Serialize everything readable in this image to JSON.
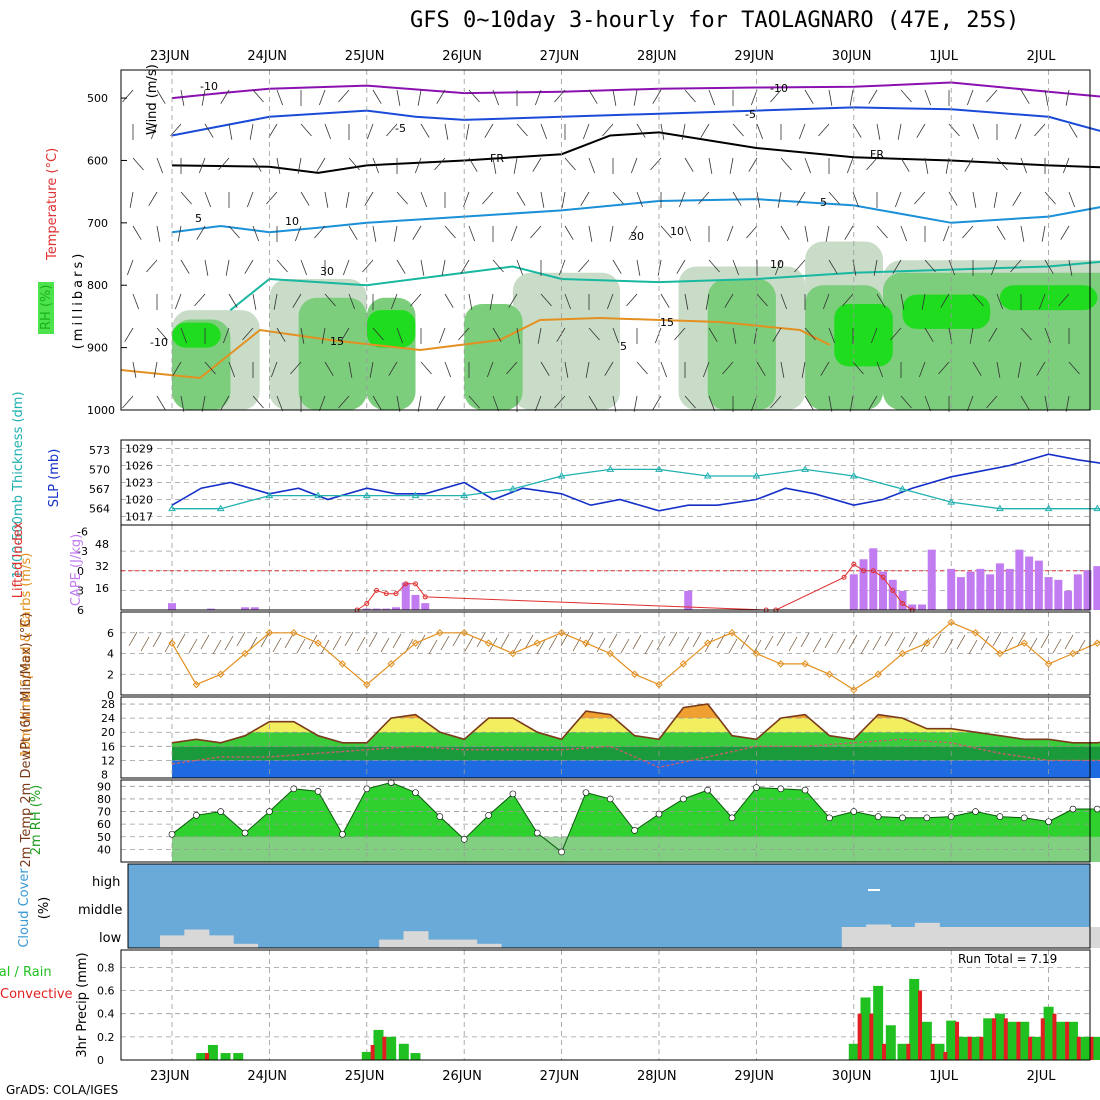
{
  "title": "GFS 0~10day 3-hourly for TAOLAGNARO (47E, 25S)",
  "credit": "GrADS: COLA/IGES",
  "run_total_label": "Run Total = 7.19",
  "colors": {
    "rh_green": "#1fdc1f",
    "rh_mid": "#7ccd7c",
    "rh_light": "#c8dcc8",
    "slp_line": "#1530c8",
    "thickness_line": "#20b0b0",
    "cape_bar": "#c07cf0",
    "lifted_line": "#e03030",
    "wind_line": "#e39020",
    "temp_line": "#7a3b1b",
    "cloud_bg": "#6aaad8",
    "cloud_low": "#d8d8d8",
    "precip_total": "#20c020",
    "precip_conv": "#e02020"
  },
  "chart_data": [
    {
      "type": "line",
      "panel": "upper-air",
      "yaxis_title": "(millibars)",
      "legend_labels": [
        "Wind (m/s)",
        "Temperature (°C)",
        "RH (%)"
      ],
      "y_ticks": [
        "500",
        "600",
        "700",
        "800",
        "900",
        "1000"
      ],
      "ylim": [
        1000,
        455
      ],
      "contour_labels": [
        "-10",
        "-10",
        "-5",
        "-5",
        "FR",
        "FR",
        "5",
        "5",
        "10",
        "-10",
        "15",
        "15",
        "5",
        "30",
        "30",
        "10",
        "10"
      ],
      "series": [
        {
          "name": "-10",
          "x_day": [
            0,
            0.5,
            1,
            2,
            3,
            4,
            5,
            6,
            7,
            8,
            9,
            9.7
          ],
          "values": [
            500,
            492,
            485,
            480,
            492,
            490,
            485,
            483,
            482,
            475,
            490,
            500
          ]
        },
        {
          "name": "-5",
          "x_day": [
            0,
            0.5,
            1,
            2,
            2.5,
            3,
            4,
            5,
            6,
            7,
            8,
            9,
            9.7
          ],
          "values": [
            560,
            545,
            530,
            520,
            530,
            535,
            530,
            525,
            520,
            515,
            518,
            530,
            560
          ]
        },
        {
          "name": "FR",
          "x_day": [
            0,
            1,
            1.5,
            2,
            3,
            4,
            4.5,
            5,
            6,
            7,
            8,
            9,
            9.7
          ],
          "values": [
            608,
            610,
            620,
            608,
            600,
            590,
            560,
            555,
            580,
            595,
            600,
            608,
            612
          ]
        },
        {
          "name": "5",
          "x_day": [
            0,
            0.5,
            1,
            1.5,
            2,
            3,
            4,
            5,
            6,
            7,
            8,
            9,
            9.7
          ],
          "values": [
            715,
            705,
            715,
            708,
            700,
            690,
            680,
            665,
            662,
            672,
            700,
            690,
            670
          ]
        },
        {
          "name": "10",
          "x_day": [
            0.6,
            1,
            2,
            3,
            3.5,
            4,
            5,
            6,
            7,
            8,
            9,
            9.7
          ],
          "values": [
            840,
            790,
            800,
            780,
            770,
            790,
            795,
            790,
            780,
            775,
            770,
            760
          ]
        }
      ]
    },
    {
      "type": "line",
      "panel": "slp-thickness",
      "ylabels": [
        "1000-500mb Thickness (dm)",
        "SLP (mb)"
      ],
      "y_ticks_left": [
        "573",
        "570",
        "567",
        "564"
      ],
      "y_ticks_right": [
        "1029",
        "1026",
        "1023",
        "1020",
        "1017"
      ],
      "series": [
        {
          "name": "SLP (mb)",
          "x_day": [
            0,
            0.3,
            0.6,
            1,
            1.3,
            1.6,
            2,
            2.3,
            2.6,
            3,
            3.3,
            3.6,
            4,
            4.3,
            4.6,
            5,
            5.3,
            5.6,
            6,
            6.3,
            6.6,
            7,
            7.3,
            7.6,
            8,
            8.3,
            8.6,
            9,
            9.3,
            9.7
          ],
          "values": [
            1019,
            1022,
            1023,
            1021,
            1022,
            1020,
            1022,
            1021,
            1021,
            1023,
            1020,
            1022,
            1021,
            1019,
            1020,
            1018,
            1019,
            1019,
            1020,
            1022,
            1021,
            1019,
            1020,
            1022,
            1024,
            1025,
            1026,
            1028,
            1027,
            1026
          ]
        },
        {
          "name": "1000-500mb Thickness (dm)",
          "x_day": [
            0,
            0.5,
            1,
            1.5,
            2,
            2.5,
            3,
            3.5,
            4,
            4.5,
            5,
            5.5,
            6,
            6.5,
            7,
            7.5,
            8,
            8.5,
            9,
            9.5,
            9.7
          ],
          "values": [
            564,
            564,
            566,
            566,
            566,
            566,
            566,
            567,
            569,
            570,
            570,
            569,
            569,
            570,
            569,
            567,
            565,
            564,
            564,
            564,
            564
          ]
        }
      ]
    },
    {
      "type": "bar",
      "panel": "cape-lifted",
      "ylabels": [
        "Lifted Index",
        "CAPE (J/kg)"
      ],
      "y_ticks_left": [
        "-6",
        "-3",
        "0",
        "3",
        "6"
      ],
      "y_ticks_right": [
        "48",
        "32",
        "16"
      ],
      "series": [
        {
          "name": "CAPE (J/kg)",
          "x_day": [
            0,
            0.4,
            0.75,
            0.85,
            2.0,
            2.1,
            2.2,
            2.3,
            2.4,
            2.5,
            2.6,
            5.3,
            7.0,
            7.1,
            7.2,
            7.3,
            7.4,
            7.5,
            7.6,
            7.7,
            7.8,
            8.0,
            8.1,
            8.2,
            8.3,
            8.4,
            8.5,
            8.6,
            8.7,
            8.8,
            8.9,
            9.0,
            9.1,
            9.2,
            9.3,
            9.4,
            9.5,
            9.6,
            9.7
          ],
          "values": [
            5,
            1,
            2,
            2,
            1,
            1,
            1,
            2,
            20,
            11,
            5,
            14,
            26,
            37,
            45,
            28,
            22,
            14,
            4,
            4,
            44,
            30,
            24,
            28,
            30,
            26,
            34,
            30,
            44,
            39,
            36,
            24,
            22,
            14,
            26,
            29,
            32,
            24,
            23
          ]
        },
        {
          "name": "Lifted Index",
          "x_day": [
            1.9,
            2.0,
            2.1,
            2.2,
            2.3,
            2.4,
            2.5,
            2.6,
            6.1,
            6.2,
            6.9,
            7.0,
            7.1,
            7.2,
            7.3,
            7.4,
            7.5,
            7.6
          ],
          "values": [
            6,
            5,
            3,
            3.5,
            3.5,
            2,
            2,
            4,
            6,
            6,
            1,
            -1,
            0,
            0,
            1,
            3,
            5,
            6
          ]
        }
      ]
    },
    {
      "type": "line",
      "panel": "10m-wind",
      "ylabel": "10m Wind Speed & Barbs (m/s)",
      "y_ticks": [
        "6",
        "4",
        "2",
        "0"
      ],
      "series": [
        {
          "name": "10m Wind Speed",
          "x_day": [
            0,
            0.25,
            0.5,
            0.75,
            1.0,
            1.25,
            1.5,
            1.75,
            2.0,
            2.25,
            2.5,
            2.75,
            3.0,
            3.25,
            3.5,
            3.75,
            4.0,
            4.25,
            4.5,
            4.75,
            5.0,
            5.25,
            5.5,
            5.75,
            6.0,
            6.25,
            6.5,
            6.75,
            7.0,
            7.25,
            7.5,
            7.75,
            8.0,
            8.25,
            8.5,
            8.75,
            9.0,
            9.25,
            9.5,
            9.7
          ],
          "values": [
            5,
            1,
            2,
            4,
            6,
            6,
            5,
            3,
            1,
            3,
            5,
            6,
            6,
            5,
            4,
            5,
            6,
            5,
            4,
            2,
            1,
            3,
            5,
            6,
            4,
            3,
            3,
            2,
            0.5,
            2,
            4,
            5,
            7,
            6,
            4,
            5,
            3,
            4,
            5,
            6
          ]
        }
      ]
    },
    {
      "type": "area",
      "panel": "2m-temp",
      "ylabel": "2m Temp 2m DewPt (6hr Min/Max) (°C)",
      "y_ticks": [
        "28",
        "24",
        "20",
        "16",
        "12",
        "8"
      ],
      "series": [
        {
          "name": "2m Temp",
          "x_day": [
            0,
            0.25,
            0.5,
            0.75,
            1.0,
            1.25,
            1.5,
            1.75,
            2.0,
            2.25,
            2.5,
            2.75,
            3.0,
            3.25,
            3.5,
            3.75,
            4.0,
            4.25,
            4.5,
            4.75,
            5.0,
            5.25,
            5.5,
            5.75,
            6.0,
            6.25,
            6.5,
            6.75,
            7.0,
            7.25,
            7.5,
            7.75,
            8.0,
            8.25,
            8.5,
            8.75,
            9.0,
            9.25,
            9.5,
            9.7
          ],
          "values": [
            17,
            18,
            17,
            19,
            23,
            23,
            19,
            17,
            17,
            24,
            25,
            20,
            18,
            24,
            24,
            20,
            18,
            26,
            25,
            19,
            18,
            27,
            28,
            19,
            18,
            24,
            25,
            19,
            18,
            25,
            24,
            21,
            21,
            20,
            19,
            18,
            18,
            17,
            17,
            18
          ]
        },
        {
          "name": "2m DewPt",
          "x_day": [
            0,
            0.5,
            1,
            1.5,
            2,
            2.5,
            3,
            3.5,
            4,
            4.5,
            5,
            5.5,
            6,
            6.5,
            7,
            7.5,
            8,
            8.5,
            9,
            9.5,
            9.7
          ],
          "values": [
            11,
            13,
            13,
            14,
            15,
            16,
            15,
            15,
            15,
            16,
            10,
            13,
            16,
            16,
            17,
            18,
            17,
            14,
            12,
            12,
            12
          ]
        }
      ]
    },
    {
      "type": "area",
      "panel": "2m-rh",
      "ylabel": "2m RH (%)",
      "y_ticks": [
        "90",
        "80",
        "70",
        "60",
        "50",
        "40"
      ],
      "series": [
        {
          "name": "2m RH",
          "x_day": [
            0,
            0.25,
            0.5,
            0.75,
            1.0,
            1.25,
            1.5,
            1.75,
            2.0,
            2.25,
            2.5,
            2.75,
            3.0,
            3.25,
            3.5,
            3.75,
            4.0,
            4.25,
            4.5,
            4.75,
            5.0,
            5.25,
            5.5,
            5.75,
            6.0,
            6.25,
            6.5,
            6.75,
            7.0,
            7.25,
            7.5,
            7.75,
            8.0,
            8.25,
            8.5,
            8.75,
            9.0,
            9.25,
            9.5,
            9.7
          ],
          "values": [
            52,
            67,
            70,
            53,
            70,
            88,
            86,
            52,
            88,
            93,
            85,
            66,
            48,
            67,
            84,
            53,
            38,
            85,
            80,
            55,
            68,
            80,
            87,
            65,
            89,
            88,
            87,
            65,
            70,
            66,
            65,
            65,
            66,
            70,
            66,
            65,
            62,
            72,
            72,
            65
          ]
        }
      ]
    },
    {
      "type": "area",
      "panel": "cloud-cover",
      "ylabel": "Cloud Cover (%)",
      "y_ticks": [
        "high",
        "middle",
        "low"
      ],
      "series": [
        {
          "name": "low cloud",
          "x_day": [
            0,
            0.25,
            0.5,
            0.75,
            1.0,
            2.0,
            2.25,
            2.5,
            2.75,
            3.0,
            3.25,
            3.5,
            3.75,
            7.0,
            7.25,
            7.5,
            7.75,
            8.0,
            8.25,
            8.5,
            8.75,
            9.0,
            9.25,
            9.5,
            9.7
          ],
          "values": [
            15,
            22,
            15,
            5,
            0,
            0,
            10,
            20,
            10,
            10,
            5,
            0,
            0,
            25,
            28,
            25,
            30,
            25,
            25,
            25,
            25,
            25,
            25,
            25,
            25
          ]
        }
      ]
    },
    {
      "type": "bar",
      "panel": "precip",
      "ylabel": "3hr Precip (mm)",
      "legend_labels": [
        "Total / Rain",
        "Convective"
      ],
      "y_ticks": [
        "0.8",
        "0.6",
        "0.4",
        "0.2",
        "0"
      ],
      "series": [
        {
          "name": "Total / Rain",
          "x_day": [
            0.3,
            0.42,
            0.55,
            0.68,
            2.0,
            2.12,
            2.25,
            2.38,
            2.5,
            7.0,
            7.12,
            7.25,
            7.38,
            7.5,
            7.62,
            7.75,
            7.88,
            8.0,
            8.12,
            8.25,
            8.38,
            8.5,
            8.62,
            8.75,
            8.88,
            9.0,
            9.12,
            9.25,
            9.38,
            9.5,
            9.62,
            9.7
          ],
          "values": [
            0.06,
            0.13,
            0.06,
            0.06,
            0.07,
            0.26,
            0.2,
            0.14,
            0.06,
            0.14,
            0.54,
            0.64,
            0.3,
            0.14,
            0.7,
            0.33,
            0.14,
            0.34,
            0.2,
            0.2,
            0.36,
            0.4,
            0.33,
            0.33,
            0.2,
            0.46,
            0.33,
            0.33,
            0.2,
            0.2,
            0.2,
            0.2
          ]
        },
        {
          "name": "Convective",
          "x_day": [
            0.36,
            2.06,
            2.18,
            7.06,
            7.18,
            7.31,
            7.56,
            7.68,
            7.81,
            7.94,
            8.06,
            8.19,
            8.31,
            8.44,
            8.56,
            8.69,
            8.81,
            8.94,
            9.06,
            9.19,
            9.31,
            9.44
          ],
          "values": [
            0.06,
            0.13,
            0.2,
            0.4,
            0.4,
            0.14,
            0.14,
            0.6,
            0.14,
            0.07,
            0.33,
            0.2,
            0.2,
            0.36,
            0.36,
            0.33,
            0.2,
            0.36,
            0.4,
            0.33,
            0.2,
            0.2
          ]
        }
      ]
    }
  ],
  "x_ticks": [
    "23JUN",
    "24JUN",
    "25JUN",
    "26JUN",
    "27JUN",
    "28JUN",
    "29JUN",
    "30JUN",
    "1JUL",
    "2JUL"
  ],
  "cloud_labels": {
    "high": "high",
    "middle": "middle",
    "low": "low",
    "axis": "Cloud Cover",
    "unit": "(%)"
  }
}
